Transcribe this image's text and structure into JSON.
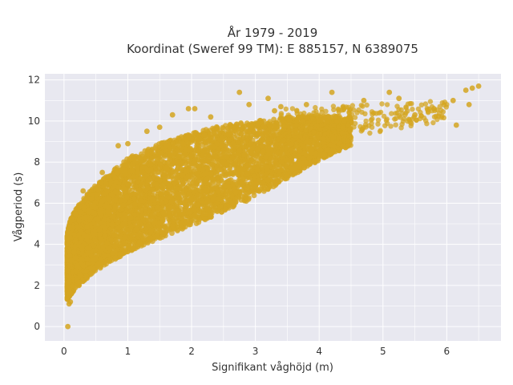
{
  "chart_data": {
    "type": "scatter",
    "title_line1": "År 1979 - 2019",
    "title_line2": "Koordinat (Sweref 99 TM): E 885157, N 6389075",
    "xlabel": "Signifikant våghöjd (m)",
    "ylabel": "Vågperiod (s)",
    "xlim": [
      -0.3,
      6.85
    ],
    "ylim": [
      -0.7,
      12.3
    ],
    "x_ticks": [
      "0",
      "1",
      "2",
      "3",
      "4",
      "5",
      "6"
    ],
    "y_ticks": [
      "0",
      "2",
      "4",
      "6",
      "8",
      "10",
      "12"
    ],
    "grid": true,
    "legend": "none",
    "marker_color": "#d4a520",
    "plot_background": "#e8e8f0",
    "envelope": {
      "description": "dense cloud of hourly observations",
      "x": [
        0.05,
        0.1,
        0.2,
        0.3,
        0.5,
        0.7,
        1.0,
        1.5,
        2.0,
        2.5,
        3.0,
        3.5,
        4.0,
        4.5
      ],
      "y_lower": [
        1.3,
        1.5,
        1.9,
        2.2,
        2.7,
        3.1,
        3.6,
        4.3,
        4.9,
        5.6,
        6.3,
        7.2,
        8.1,
        8.8
      ],
      "y_upper": [
        4.5,
        5.2,
        5.8,
        6.2,
        6.9,
        7.4,
        8.2,
        8.9,
        9.4,
        9.8,
        10.0,
        10.2,
        10.3,
        10.2
      ]
    },
    "sample_points": [
      {
        "x": 0.06,
        "y": 0.0
      },
      {
        "x": 0.08,
        "y": 1.1
      },
      {
        "x": 0.1,
        "y": 1.2
      },
      {
        "x": 0.3,
        "y": 6.6
      },
      {
        "x": 0.6,
        "y": 7.5
      },
      {
        "x": 0.85,
        "y": 8.8
      },
      {
        "x": 1.0,
        "y": 8.9
      },
      {
        "x": 1.3,
        "y": 9.5
      },
      {
        "x": 1.5,
        "y": 9.7
      },
      {
        "x": 1.7,
        "y": 10.3
      },
      {
        "x": 1.95,
        "y": 10.6
      },
      {
        "x": 2.05,
        "y": 10.6
      },
      {
        "x": 2.3,
        "y": 10.2
      },
      {
        "x": 2.75,
        "y": 11.4
      },
      {
        "x": 2.9,
        "y": 10.8
      },
      {
        "x": 3.2,
        "y": 11.1
      },
      {
        "x": 3.3,
        "y": 10.5
      },
      {
        "x": 3.4,
        "y": 10.7
      },
      {
        "x": 3.8,
        "y": 10.8
      },
      {
        "x": 4.2,
        "y": 11.4
      },
      {
        "x": 4.7,
        "y": 11.0
      },
      {
        "x": 5.1,
        "y": 11.4
      },
      {
        "x": 5.25,
        "y": 11.1
      },
      {
        "x": 5.5,
        "y": 10.3
      },
      {
        "x": 5.8,
        "y": 10.6
      },
      {
        "x": 6.1,
        "y": 11.0
      },
      {
        "x": 6.15,
        "y": 9.8
      },
      {
        "x": 6.3,
        "y": 11.5
      },
      {
        "x": 6.4,
        "y": 11.6
      },
      {
        "x": 6.5,
        "y": 11.7
      },
      {
        "x": 6.35,
        "y": 10.8
      }
    ]
  }
}
